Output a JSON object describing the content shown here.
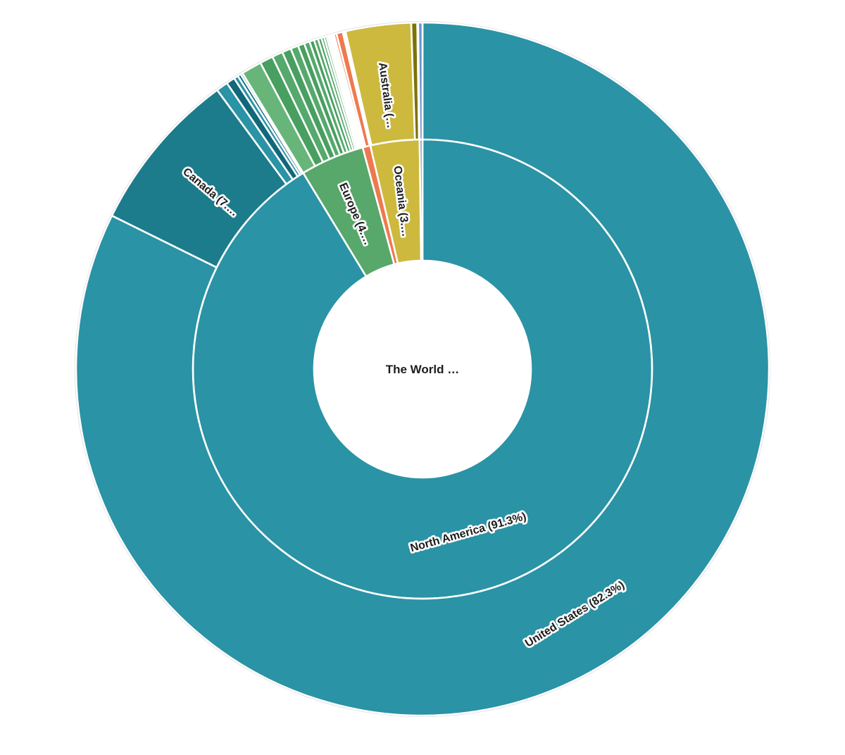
{
  "chart_data": {
    "type": "sunburst",
    "direction": "clockwise",
    "start_angle_deg": 0,
    "levels": [
      "continent",
      "country"
    ],
    "legend": "none",
    "root": {
      "label": "The World …"
    },
    "continents": [
      {
        "label": "North America (91.3%)",
        "value": 91.3,
        "color": "#2a93a5",
        "children": [
          {
            "label": "United States (82.3%)",
            "value": 82.3,
            "color": "#2a93a5"
          },
          {
            "label": "Canada (7.…",
            "value": 7.6,
            "color": "#1c7c8c"
          },
          {
            "label": "",
            "value": 0.55,
            "color": "#2a93a5"
          },
          {
            "label": "",
            "value": 0.4,
            "color": "#11687b"
          },
          {
            "label": "",
            "value": 0.2,
            "color": "#2a93a5"
          },
          {
            "label": "",
            "value": 0.15,
            "color": "#11687b"
          },
          {
            "label": "",
            "value": 0.1,
            "color": "#2a93a5"
          }
        ]
      },
      {
        "label": "Europe (4.…",
        "value": 4.5,
        "color": "#57a86a",
        "children": [
          {
            "label": "",
            "value": 0.95,
            "color": "#68b57a"
          },
          {
            "label": "",
            "value": 0.62,
            "color": "#489f60"
          },
          {
            "label": "",
            "value": 0.5,
            "color": "#55a96c"
          },
          {
            "label": "",
            "value": 0.42,
            "color": "#489f60"
          },
          {
            "label": "",
            "value": 0.36,
            "color": "#55a96c"
          },
          {
            "label": "",
            "value": 0.3,
            "color": "#489f60"
          },
          {
            "label": "",
            "value": 0.26,
            "color": "#55a96c"
          },
          {
            "label": "",
            "value": 0.22,
            "color": "#489f60"
          },
          {
            "label": "",
            "value": 0.19,
            "color": "#55a96c"
          },
          {
            "label": "",
            "value": 0.16,
            "color": "#489f60"
          },
          {
            "label": "",
            "value": 0.13,
            "color": "#55a96c"
          },
          {
            "label": "",
            "value": 0.11,
            "color": "#489f60"
          },
          {
            "label": "",
            "value": 0.09,
            "color": "#55a96c"
          },
          {
            "label": "",
            "value": 0.07,
            "color": "#489f60"
          },
          {
            "label": "",
            "value": 0.04,
            "color": "#55a96c"
          },
          {
            "label": "",
            "value": 0.03,
            "color": "#489f60"
          },
          {
            "label": "",
            "value": 0.03,
            "color": "#55a96c"
          },
          {
            "label": "",
            "value": 0.02,
            "color": "#489f60"
          }
        ]
      },
      {
        "label": "",
        "value": 0.55,
        "color": "#ee794e",
        "children": [
          {
            "label": "",
            "value": 0.08,
            "color": "#ee794e"
          },
          {
            "label": "",
            "value": 0.12,
            "color": "#ee794e"
          },
          {
            "label": "",
            "value": 0.3,
            "color": "#ee794e"
          },
          {
            "label": "",
            "value": 0.05,
            "color": "#ee794e"
          }
        ]
      },
      {
        "label": "Oceania (3.…",
        "value": 3.45,
        "color": "#cdb93e",
        "children": [
          {
            "label": "",
            "value": 0.08,
            "color": "#cdb93e"
          },
          {
            "label": "Australia (…",
            "value": 3.05,
            "color": "#cdb93e"
          },
          {
            "label": "",
            "value": 0.28,
            "color": "#7b7306"
          },
          {
            "label": "",
            "value": 0.04,
            "color": "#cdb93e"
          }
        ]
      },
      {
        "label": "",
        "value": 0.2,
        "color": "#6d92cd",
        "children": [
          {
            "label": "",
            "value": 0.2,
            "color": "#6d92cd"
          }
        ]
      }
    ],
    "colors": {
      "label_text": "#1d1d1d",
      "label_halo": "#ffffff",
      "ring_border": "#ffffff",
      "outer_rim": "#dcdce0",
      "background": "#ffffff"
    }
  }
}
